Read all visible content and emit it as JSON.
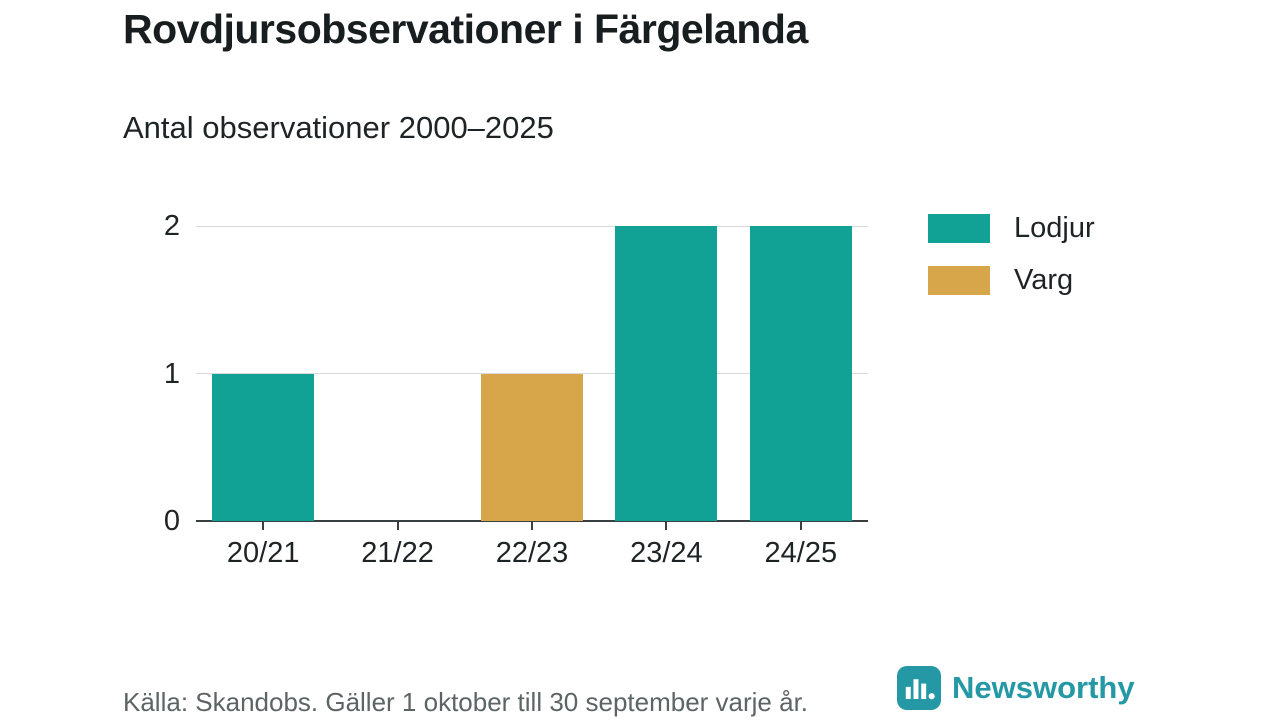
{
  "title": "Rovdjursobservationer i Färgelanda",
  "subtitle": "Antal observationer 2000–2025",
  "footer": {
    "source": "Källa: Skandobs. Gäller 1 oktober till 30 september varje år.",
    "brand": "Newsworthy"
  },
  "colors": {
    "lodjur_teal": "#12a195",
    "varg_gold": "#d7a64a",
    "axis": "#3a3f41",
    "grid": "#d9d9d9",
    "brand_teal": "#2498a5",
    "muted_text": "#5d6466"
  },
  "chart_data": {
    "type": "bar",
    "title": "Rovdjursobservationer i Färgelanda",
    "subtitle": "Antal observationer 2000–2025",
    "categories": [
      "20/21",
      "21/22",
      "22/23",
      "23/24",
      "24/25"
    ],
    "series": [
      {
        "name": "Lodjur",
        "color": "#12a195",
        "values": [
          1,
          0,
          0,
          2,
          2
        ]
      },
      {
        "name": "Varg",
        "color": "#d7a64a",
        "values": [
          0,
          0,
          1,
          0,
          0
        ]
      }
    ],
    "xlabel": "",
    "ylabel": "",
    "ylim": [
      0,
      2
    ],
    "yticks": [
      0,
      1,
      2
    ],
    "grid": true,
    "legend_position": "right"
  }
}
